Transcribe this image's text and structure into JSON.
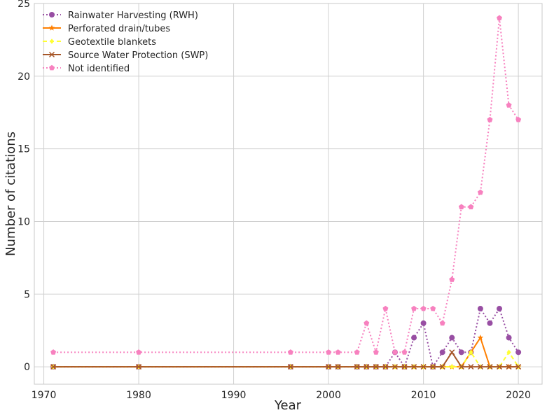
{
  "chart_data": {
    "type": "line",
    "xlabel": "Year",
    "ylabel": "Number of citations",
    "xlim": [
      1969,
      2022.5
    ],
    "ylim": [
      -1.2,
      25
    ],
    "xticks": [
      1970,
      1980,
      1990,
      2000,
      2010,
      2020
    ],
    "yticks": [
      0,
      5,
      10,
      15,
      20,
      25
    ],
    "grid": true,
    "legend_position": "top-left",
    "x": [
      1971,
      1980,
      1996,
      2000,
      2001,
      2003,
      2004,
      2005,
      2006,
      2007,
      2008,
      2009,
      2010,
      2011,
      2012,
      2013,
      2014,
      2015,
      2016,
      2017,
      2018,
      2019,
      2020
    ],
    "series": [
      {
        "name": "Rainwater Harvesting (RWH)",
        "color": "#984ea3",
        "line_style": "dotted",
        "marker": "circle",
        "values": [
          0,
          0,
          0,
          0,
          0,
          0,
          0,
          0,
          0,
          1,
          0,
          2,
          3,
          0,
          1,
          2,
          1,
          1,
          4,
          3,
          4,
          2,
          1
        ]
      },
      {
        "name": "Perforated drain/tubes",
        "color": "#ff7f00",
        "line_style": "solid",
        "marker": "star",
        "values": [
          0,
          0,
          0,
          0,
          0,
          0,
          0,
          0,
          0,
          0,
          0,
          0,
          0,
          0,
          0,
          0,
          0,
          1,
          2,
          0,
          0,
          0,
          0
        ]
      },
      {
        "name": "Geotextile blankets",
        "color": "#ffff33",
        "line_style": "dashed",
        "marker": "diamond",
        "values": [
          0,
          0,
          0,
          0,
          0,
          0,
          0,
          0,
          0,
          0,
          0,
          0,
          0,
          0,
          0,
          0,
          0,
          1,
          0,
          0,
          0,
          1,
          0
        ]
      },
      {
        "name": "Source Water Protection (SWP)",
        "color": "#a65628",
        "line_style": "solid",
        "marker": "x",
        "values": [
          0,
          0,
          0,
          0,
          0,
          0,
          0,
          0,
          0,
          0,
          0,
          0,
          0,
          0,
          0,
          1,
          0,
          0,
          0,
          0,
          0,
          0,
          0
        ]
      },
      {
        "name": "Not identified",
        "color": "#f781bf",
        "line_style": "dotted",
        "marker": "pentagon",
        "values": [
          1,
          1,
          1,
          1,
          1,
          1,
          3,
          1,
          4,
          1,
          1,
          4,
          4,
          4,
          3,
          6,
          11,
          11,
          12,
          17,
          24,
          18,
          17
        ]
      }
    ]
  }
}
